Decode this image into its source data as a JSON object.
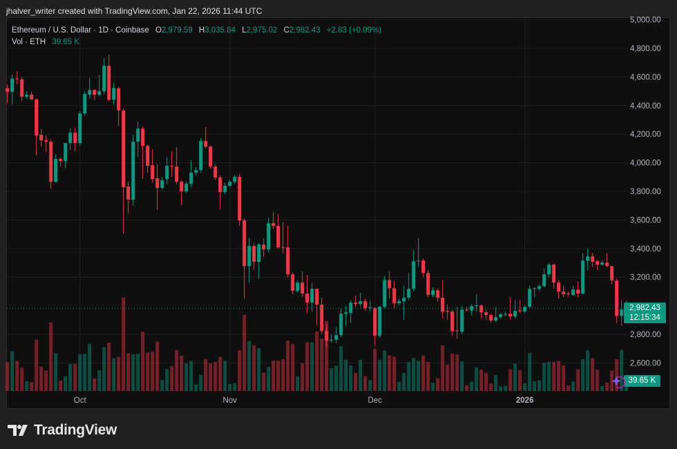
{
  "credit": "jhalver_writer created with TradingView.com, Jan 22, 2026 11:44 UTC",
  "legend": {
    "symbol": "Ethereum / U.S. Dollar · 1D · Coinbase",
    "open_label": "O",
    "open": "2,979.59",
    "high_label": "H",
    "high": "3,035.84",
    "low_label": "L",
    "low": "2,975.02",
    "close_label": "C",
    "close": "2,982.43",
    "change": "+2.83 (+0.09%)",
    "volume_label": "Vol · ETH",
    "volume": "39.65 K"
  },
  "price_label": {
    "price": "2,982.43",
    "countdown": "12:15:34"
  },
  "volume_label": "39.65 K",
  "logo_text": "TradingView",
  "colors": {
    "up": "#089981",
    "down": "#f23645",
    "background": "#0f0f0f",
    "grid": "#1e1e1e"
  },
  "chart_data": {
    "type": "candlestick",
    "title": "Ethereum / U.S. Dollar · 1D · Coinbase",
    "ylim": [
      2520,
      5010
    ],
    "y_tick_labels": [
      "5,000.00",
      "4,800.00",
      "4,600.00",
      "4,400.00",
      "4,200.00",
      "4,000.00",
      "3,800.00",
      "3,600.00",
      "3,400.00",
      "3,200.00",
      "2,800.00",
      "2,600.00"
    ],
    "y_ticks": [
      5000,
      4800,
      4600,
      4400,
      4200,
      4000,
      3800,
      3600,
      3400,
      3200,
      2800,
      2600
    ],
    "x_tick_labels": [
      {
        "label": "Oct",
        "date": "2025-10-01"
      },
      {
        "label": "Nov",
        "date": "2025-11-01"
      },
      {
        "label": "Dec",
        "date": "2025-12-01"
      },
      {
        "label": "2026",
        "date": "2026-01-01"
      }
    ],
    "grid": true,
    "volume_unit": "K ETH",
    "columns": [
      "date",
      "open",
      "high",
      "low",
      "close",
      "volume"
    ],
    "candles": [
      [
        "2025-09-16",
        4520,
        4545,
        4418,
        4496,
        111
      ],
      [
        "2025-09-17",
        4496,
        4617,
        4408,
        4588,
        152
      ],
      [
        "2025-09-18",
        4590,
        4640,
        4548,
        4586,
        115
      ],
      [
        "2025-09-19",
        4583,
        4600,
        4432,
        4462,
        89
      ],
      [
        "2025-09-20",
        4462,
        4500,
        4445,
        4476,
        37
      ],
      [
        "2025-09-21",
        4476,
        4495,
        4440,
        4443,
        34
      ],
      [
        "2025-09-22",
        4443,
        4450,
        4050,
        4190,
        196
      ],
      [
        "2025-09-23",
        4195,
        4235,
        4113,
        4157,
        93
      ],
      [
        "2025-09-24",
        4157,
        4190,
        4075,
        4147,
        78
      ],
      [
        "2025-09-25",
        4147,
        4160,
        3818,
        3867,
        262
      ],
      [
        "2025-09-26",
        3867,
        4060,
        3860,
        4027,
        144
      ],
      [
        "2025-09-27",
        4027,
        4035,
        3970,
        4012,
        40
      ],
      [
        "2025-09-28",
        4012,
        4138,
        3960,
        4138,
        57
      ],
      [
        "2025-09-29",
        4138,
        4240,
        4090,
        4210,
        103
      ],
      [
        "2025-09-30",
        4210,
        4244,
        4080,
        4138,
        104
      ],
      [
        "2025-10-01",
        4138,
        4360,
        4120,
        4345,
        140
      ],
      [
        "2025-10-02",
        4345,
        4500,
        4330,
        4480,
        142
      ],
      [
        "2025-10-03",
        4476,
        4591,
        4450,
        4509,
        180
      ],
      [
        "2025-10-04",
        4509,
        4515,
        4440,
        4476,
        48
      ],
      [
        "2025-10-05",
        4476,
        4615,
        4465,
        4500,
        79
      ],
      [
        "2025-10-06",
        4500,
        4732,
        4480,
        4678,
        167
      ],
      [
        "2025-10-07",
        4678,
        4755,
        4430,
        4440,
        185
      ],
      [
        "2025-10-08",
        4440,
        4560,
        4410,
        4523,
        124
      ],
      [
        "2025-10-09",
        4520,
        4530,
        4258,
        4365,
        130
      ],
      [
        "2025-10-10",
        4365,
        4380,
        3505,
        3829,
        357
      ],
      [
        "2025-10-11",
        3834,
        3870,
        3645,
        3742,
        144
      ],
      [
        "2025-10-12",
        3742,
        4196,
        3700,
        4147,
        140
      ],
      [
        "2025-10-13",
        4147,
        4287,
        4041,
        4239,
        142
      ],
      [
        "2025-10-14",
        4239,
        4255,
        3887,
        4118,
        226
      ],
      [
        "2025-10-15",
        4118,
        4125,
        3930,
        3978,
        147
      ],
      [
        "2025-10-16",
        3983,
        4094,
        3860,
        3887,
        150
      ],
      [
        "2025-10-17",
        3892,
        3990,
        3669,
        3824,
        189
      ],
      [
        "2025-10-18",
        3824,
        3900,
        3810,
        3877,
        42
      ],
      [
        "2025-10-19",
        3887,
        4040,
        3850,
        3978,
        84
      ],
      [
        "2025-10-20",
        3978,
        4080,
        3900,
        3975,
        94
      ],
      [
        "2025-10-21",
        3973,
        4109,
        3850,
        3867,
        156
      ],
      [
        "2025-10-22",
        3867,
        3880,
        3703,
        3800,
        135
      ],
      [
        "2025-10-23",
        3800,
        3870,
        3790,
        3853,
        106
      ],
      [
        "2025-10-24",
        3853,
        4017,
        3830,
        3930,
        115
      ],
      [
        "2025-10-25",
        3930,
        3970,
        3910,
        3949,
        25
      ],
      [
        "2025-10-26",
        3949,
        4172,
        3930,
        4152,
        62
      ],
      [
        "2025-10-27",
        4152,
        4249,
        4100,
        4113,
        122
      ],
      [
        "2025-10-28",
        4113,
        4120,
        3960,
        3973,
        106
      ],
      [
        "2025-10-29",
        3973,
        3990,
        3880,
        3897,
        111
      ],
      [
        "2025-10-30",
        3897,
        3910,
        3674,
        3795,
        130
      ],
      [
        "2025-10-31",
        3795,
        3860,
        3780,
        3839,
        115
      ],
      [
        "2025-11-01",
        3839,
        3880,
        3830,
        3867,
        26
      ],
      [
        "2025-11-02",
        3867,
        3915,
        3850,
        3901,
        30
      ],
      [
        "2025-11-03",
        3901,
        3920,
        3560,
        3597,
        155
      ],
      [
        "2025-11-04",
        3597,
        3610,
        3050,
        3277,
        292
      ],
      [
        "2025-11-05",
        3277,
        3476,
        3161,
        3418,
        191
      ],
      [
        "2025-11-06",
        3418,
        3440,
        3250,
        3307,
        174
      ],
      [
        "2025-11-07",
        3307,
        3440,
        3186,
        3428,
        164
      ],
      [
        "2025-11-08",
        3428,
        3470,
        3340,
        3394,
        70
      ],
      [
        "2025-11-09",
        3394,
        3616,
        3370,
        3577,
        92
      ],
      [
        "2025-11-10",
        3577,
        3655,
        3540,
        3558,
        116
      ],
      [
        "2025-11-11",
        3558,
        3640,
        3400,
        3408,
        115
      ],
      [
        "2025-11-12",
        3410,
        3583,
        3365,
        3405,
        121
      ],
      [
        "2025-11-13",
        3408,
        3558,
        3200,
        3220,
        193
      ],
      [
        "2025-11-14",
        3220,
        3230,
        3080,
        3104,
        180
      ],
      [
        "2025-11-15",
        3104,
        3180,
        3090,
        3162,
        56
      ],
      [
        "2025-11-16",
        3162,
        3240,
        3060,
        3085,
        106
      ],
      [
        "2025-11-17",
        3085,
        3215,
        2949,
        3022,
        186
      ],
      [
        "2025-11-18",
        3022,
        3162,
        2960,
        3118,
        186
      ],
      [
        "2025-11-19",
        3118,
        3120,
        2866,
        3008,
        227
      ],
      [
        "2025-11-20",
        3008,
        3056,
        2800,
        2823,
        200
      ],
      [
        "2025-11-21",
        2823,
        2870,
        2715,
        2756,
        267
      ],
      [
        "2025-11-22",
        2756,
        2800,
        2740,
        2762,
        87
      ],
      [
        "2025-11-23",
        2762,
        2850,
        2740,
        2794,
        97
      ],
      [
        "2025-11-24",
        2794,
        2980,
        2780,
        2944,
        171
      ],
      [
        "2025-11-25",
        2944,
        3000,
        2860,
        2954,
        119
      ],
      [
        "2025-11-26",
        2949,
        3040,
        2880,
        3022,
        98
      ],
      [
        "2025-11-27",
        3022,
        3070,
        2990,
        3012,
        69
      ],
      [
        "2025-11-28",
        3012,
        3090,
        2990,
        3032,
        119
      ],
      [
        "2025-11-29",
        3032,
        3050,
        2965,
        2983,
        57
      ],
      [
        "2025-11-30",
        2985,
        3035,
        2960,
        2990,
        41
      ],
      [
        "2025-12-01",
        2983,
        2990,
        2722,
        2790,
        161
      ],
      [
        "2025-12-02",
        2790,
        3000,
        2775,
        2993,
        119
      ],
      [
        "2025-12-03",
        2993,
        3210,
        2980,
        3180,
        155
      ],
      [
        "2025-12-04",
        3180,
        3240,
        3050,
        3123,
        136
      ],
      [
        "2025-12-05",
        3123,
        3175,
        2980,
        3017,
        130
      ],
      [
        "2025-12-06",
        3017,
        3050,
        3000,
        3032,
        35
      ],
      [
        "2025-12-07",
        3032,
        3140,
        2900,
        3056,
        69
      ],
      [
        "2025-12-08",
        3056,
        3230,
        3040,
        3118,
        111
      ],
      [
        "2025-12-09",
        3118,
        3390,
        3100,
        3311,
        126
      ],
      [
        "2025-12-10",
        3311,
        3471,
        3270,
        3316,
        115
      ],
      [
        "2025-12-11",
        3316,
        3330,
        3200,
        3229,
        135
      ],
      [
        "2025-12-12",
        3229,
        3250,
        3060,
        3075,
        111
      ],
      [
        "2025-12-13",
        3075,
        3130,
        3060,
        3108,
        32
      ],
      [
        "2025-12-14",
        3108,
        3120,
        3030,
        3056,
        49
      ],
      [
        "2025-12-15",
        3056,
        3180,
        2910,
        2959,
        174
      ],
      [
        "2025-12-16",
        2964,
        3010,
        2900,
        2959,
        101
      ],
      [
        "2025-12-17",
        2959,
        2970,
        2790,
        2823,
        143
      ],
      [
        "2025-12-18",
        2828,
        2990,
        2770,
        2823,
        139
      ],
      [
        "2025-12-19",
        2818,
        3000,
        2800,
        2973,
        113
      ],
      [
        "2025-12-20",
        2973,
        2990,
        2960,
        2968,
        22
      ],
      [
        "2025-12-21",
        2968,
        3010,
        2930,
        2997,
        36
      ],
      [
        "2025-12-22",
        2997,
        3080,
        2960,
        3002,
        90
      ],
      [
        "2025-12-23",
        3002,
        3010,
        2910,
        2954,
        82
      ],
      [
        "2025-12-24",
        2954,
        2975,
        2900,
        2935,
        69
      ],
      [
        "2025-12-25",
        2935,
        2945,
        2880,
        2896,
        29
      ],
      [
        "2025-12-26",
        2896,
        2990,
        2885,
        2920,
        61
      ],
      [
        "2025-12-27",
        2920,
        2950,
        2910,
        2940,
        17
      ],
      [
        "2025-12-28",
        2938,
        2960,
        2925,
        2942,
        19
      ],
      [
        "2025-12-29",
        2944,
        3060,
        2905,
        2925,
        83
      ],
      [
        "2025-12-30",
        2925,
        3040,
        2910,
        2964,
        105
      ],
      [
        "2025-12-31",
        2968,
        3040,
        2950,
        2962,
        79
      ],
      [
        "2026-01-01",
        2959,
        3005,
        2950,
        2993,
        29
      ],
      [
        "2026-01-02",
        2993,
        3140,
        2985,
        3118,
        145
      ],
      [
        "2026-01-03",
        3118,
        3130,
        3060,
        3123,
        37
      ],
      [
        "2026-01-04",
        3118,
        3150,
        3105,
        3137,
        41
      ],
      [
        "2026-01-05",
        3137,
        3260,
        3130,
        3220,
        107
      ],
      [
        "2026-01-06",
        3220,
        3300,
        3200,
        3287,
        111
      ],
      [
        "2026-01-07",
        3287,
        3295,
        3120,
        3162,
        111
      ],
      [
        "2026-01-08",
        3162,
        3180,
        3050,
        3099,
        115
      ],
      [
        "2026-01-09",
        3099,
        3140,
        3060,
        3080,
        98
      ],
      [
        "2026-01-10",
        3085,
        3100,
        3065,
        3082,
        21
      ],
      [
        "2026-01-11",
        3075,
        3140,
        3070,
        3113,
        36
      ],
      [
        "2026-01-12",
        3113,
        3170,
        3060,
        3085,
        83
      ],
      [
        "2026-01-13",
        3085,
        3370,
        3080,
        3316,
        121
      ],
      [
        "2026-01-14",
        3316,
        3400,
        3250,
        3345,
        156
      ],
      [
        "2026-01-15",
        3345,
        3370,
        3270,
        3307,
        125
      ],
      [
        "2026-01-16",
        3311,
        3320,
        3250,
        3287,
        81
      ],
      [
        "2026-01-17",
        3287,
        3320,
        3280,
        3301,
        19
      ],
      [
        "2026-01-18",
        3301,
        3370,
        3270,
        3277,
        32
      ],
      [
        "2026-01-19",
        3277,
        3280,
        3150,
        3176,
        78
      ],
      [
        "2026-01-20",
        3176,
        3190,
        2880,
        2929,
        121
      ],
      [
        "2026-01-21",
        2929,
        3040,
        2860,
        2973,
        156
      ],
      [
        "2026-01-22",
        2979.59,
        3035.84,
        2975.02,
        2982.43,
        39.65
      ]
    ]
  }
}
